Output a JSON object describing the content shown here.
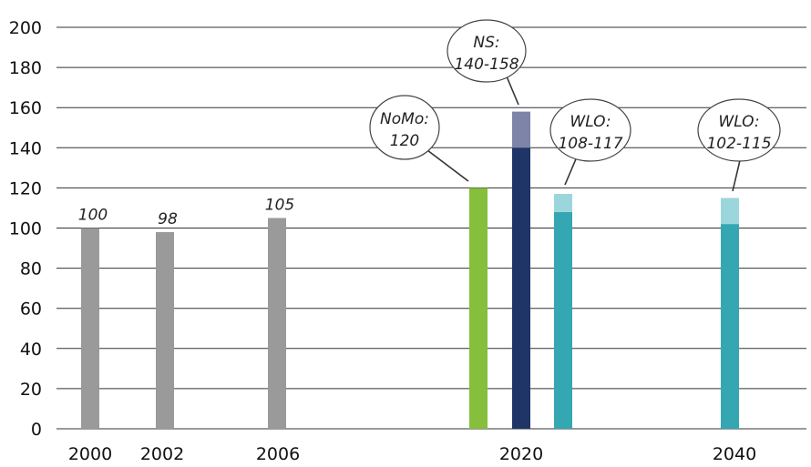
{
  "chart_data": {
    "type": "bar",
    "ylim": [
      0,
      200
    ],
    "yticks": [
      "0",
      "20",
      "40",
      "60",
      "80",
      "100",
      "120",
      "140",
      "160",
      "180",
      "200"
    ],
    "xticks": [
      "2000",
      "2002",
      "2006",
      "2020",
      "2040"
    ],
    "grid": true,
    "bars": [
      {
        "category": "2000",
        "low": 100,
        "high": 100,
        "label": "100",
        "color": "#9a9a9a"
      },
      {
        "category": "2002",
        "low": 98,
        "high": 98,
        "label": "98",
        "color": "#9a9a9a"
      },
      {
        "category": "2006",
        "low": 105,
        "high": 105,
        "label": "105",
        "color": "#9a9a9a"
      },
      {
        "category": "NoMo",
        "low": 120,
        "high": 120,
        "color": "#86bf3c"
      },
      {
        "category": "NS",
        "low": 140,
        "high": 158,
        "color": "#1f3467",
        "range_color": "#7d84a8"
      },
      {
        "category": "WLO 2020",
        "low": 108,
        "high": 117,
        "color": "#35a7b2",
        "range_color": "#9bd6dc"
      },
      {
        "category": "WLO 2040",
        "low": 102,
        "high": 115,
        "color": "#35a7b2",
        "range_color": "#9bd6dc"
      }
    ],
    "callouts": [
      {
        "line1": "NoMo:",
        "line2": "120"
      },
      {
        "line1": "NS:",
        "line2": "140-158"
      },
      {
        "line1": "WLO:",
        "line2": "108-117"
      },
      {
        "line1": "WLO:",
        "line2": "102-115"
      }
    ]
  }
}
